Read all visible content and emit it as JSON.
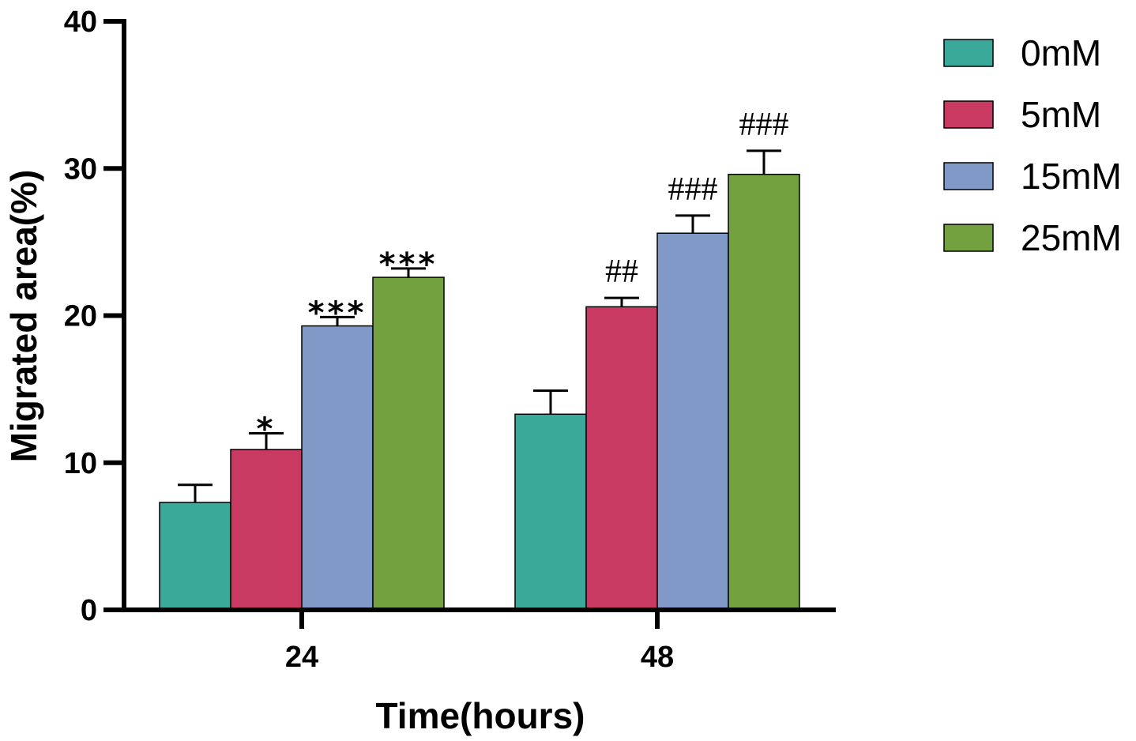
{
  "chart_data": {
    "type": "bar",
    "xlabel": "Time(hours)",
    "ylabel": "Migrated area(%)",
    "ylim": [
      0,
      40
    ],
    "yticks": [
      0,
      10,
      20,
      30,
      40
    ],
    "categories": [
      "24",
      "48"
    ],
    "series": [
      {
        "name": "0mM",
        "color": "#3BA999",
        "values": [
          7.3,
          13.3
        ],
        "errors": [
          1.2,
          1.6
        ],
        "annotations": [
          "",
          ""
        ]
      },
      {
        "name": "5mM",
        "color": "#C93A62",
        "values": [
          10.9,
          20.6
        ],
        "errors": [
          1.1,
          0.6
        ],
        "annotations": [
          "*",
          "##"
        ]
      },
      {
        "name": "15mM",
        "color": "#8099C7",
        "values": [
          19.3,
          25.6
        ],
        "errors": [
          0.6,
          1.2
        ],
        "annotations": [
          "***",
          "###"
        ]
      },
      {
        "name": "25mM",
        "color": "#74A13F",
        "values": [
          22.6,
          29.6
        ],
        "errors": [
          0.6,
          1.6
        ],
        "annotations": [
          "***",
          "###"
        ]
      }
    ],
    "grid": false,
    "legend": "right"
  }
}
